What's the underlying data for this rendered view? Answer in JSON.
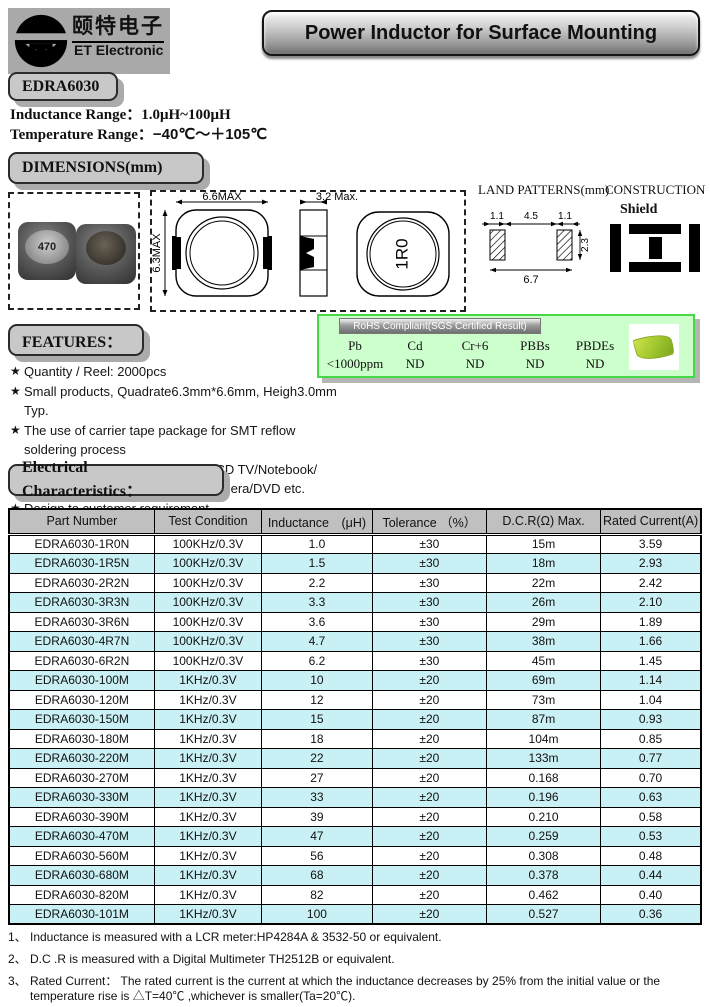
{
  "header": {
    "logo_chinese": "颐特电子",
    "logo_english": "ET Electronic",
    "title": "Power Inductor for Surface Mounting"
  },
  "part_number_badge": "EDRA6030",
  "specs": {
    "inductance_label": "Inductance Range：",
    "inductance_value": "1.0μH~100μH",
    "temperature_label": "Temperature Range：",
    "temperature_value": "−40℃～＋105℃"
  },
  "dimensions": {
    "section_title": "DIMENSIONS(mm)",
    "photo_marking": "470",
    "front_width": "6.6MAX",
    "front_height": "6.3MAX",
    "side_width": "3.2 Max.",
    "top_marking": "1R0"
  },
  "land_patterns": {
    "title": "LAND PATTERNS(mm)",
    "pad_left": "1.1",
    "gap": "4.5",
    "pad_right": "1.1",
    "pad_height": "2.3",
    "total_width": "6.7"
  },
  "construction": {
    "title": "CONSTRUCTION",
    "type": "Shield"
  },
  "rohs": {
    "banner": "RoHS Compliant(SGS Certified Result)",
    "columns": [
      "Pb",
      "Cd",
      "Cr+6",
      "PBBs",
      "PBDEs"
    ],
    "values": [
      "<1000ppm",
      "ND",
      "ND",
      "ND",
      "ND"
    ],
    "leaf_icon": "green-leaf"
  },
  "features": {
    "section_title": "FEATURES：",
    "items": [
      {
        "star": true,
        "text": "Quantity / Reel: 2000pcs"
      },
      {
        "star": true,
        "text": "Small products, Quadrate6.3mm*6.6mm, Heigh3.0mm Typ."
      },
      {
        "star": true,
        "text": "The use of carrier tape package for SMT reflow soldering process"
      },
      {
        "star": true,
        "text": "Widely use in DC-DC converter/LCD TV/Notebook/"
      },
      {
        "star": false,
        "text": "PDA/MP3 & MP4 player/Digital camera/DVD etc."
      },
      {
        "star": true,
        "text": "Design to customer requirement"
      }
    ]
  },
  "electrical": {
    "section_title": "Electrical Characteristics：",
    "headers": [
      "Part Number",
      "Test Condition",
      "Inductance　(μH)",
      "Tolerance （%）",
      "D.C.R(Ω) Max.",
      "Rated Current(A)"
    ],
    "rows": [
      [
        "EDRA6030-1R0N",
        "100KHz/0.3V",
        "1.0",
        "±30",
        "15m",
        "3.59"
      ],
      [
        "EDRA6030-1R5N",
        "100KHz/0.3V",
        "1.5",
        "±30",
        "18m",
        "2.93"
      ],
      [
        "EDRA6030-2R2N",
        "100KHz/0.3V",
        "2.2",
        "±30",
        "22m",
        "2.42"
      ],
      [
        "EDRA6030-3R3N",
        "100KHz/0.3V",
        "3.3",
        "±30",
        "26m",
        "2.10"
      ],
      [
        "EDRA6030-3R6N",
        "100KHz/0.3V",
        "3.6",
        "±30",
        "29m",
        "1.89"
      ],
      [
        "EDRA6030-4R7N",
        "100KHz/0.3V",
        "4.7",
        "±30",
        "38m",
        "1.66"
      ],
      [
        "EDRA6030-6R2N",
        "100KHz/0.3V",
        "6.2",
        "±30",
        "45m",
        "1.45"
      ],
      [
        "EDRA6030-100M",
        "1KHz/0.3V",
        "10",
        "±20",
        "69m",
        "1.14"
      ],
      [
        "EDRA6030-120M",
        "1KHz/0.3V",
        "12",
        "±20",
        "73m",
        "1.04"
      ],
      [
        "EDRA6030-150M",
        "1KHz/0.3V",
        "15",
        "±20",
        "87m",
        "0.93"
      ],
      [
        "EDRA6030-180M",
        "1KHz/0.3V",
        "18",
        "±20",
        "104m",
        "0.85"
      ],
      [
        "EDRA6030-220M",
        "1KHz/0.3V",
        "22",
        "±20",
        "133m",
        "0.77"
      ],
      [
        "EDRA6030-270M",
        "1KHz/0.3V",
        "27",
        "±20",
        "0.168",
        "0.70"
      ],
      [
        "EDRA6030-330M",
        "1KHz/0.3V",
        "33",
        "±20",
        "0.196",
        "0.63"
      ],
      [
        "EDRA6030-390M",
        "1KHz/0.3V",
        "39",
        "±20",
        "0.210",
        "0.58"
      ],
      [
        "EDRA6030-470M",
        "1KHz/0.3V",
        "47",
        "±20",
        "0.259",
        "0.53"
      ],
      [
        "EDRA6030-560M",
        "1KHz/0.3V",
        "56",
        "±20",
        "0.308",
        "0.48"
      ],
      [
        "EDRA6030-680M",
        "1KHz/0.3V",
        "68",
        "±20",
        "0.378",
        "0.44"
      ],
      [
        "EDRA6030-820M",
        "1KHz/0.3V",
        "82",
        "±20",
        "0.462",
        "0.40"
      ],
      [
        "EDRA6030-101M",
        "1KHz/0.3V",
        "100",
        "±20",
        "0.527",
        "0.36"
      ]
    ]
  },
  "notes": [
    {
      "num": "1、",
      "text": "Inductance is measured with a LCR meter:HP4284A & 3532-50 or equivalent."
    },
    {
      "num": "2、",
      "text": "D.C .R is measured with a Digital Multimeter TH2512B or equivalent."
    },
    {
      "num": "3、",
      "text": "Rated Current： The rated current is the current at which the inductance decreases by 25% from the initial value or the temperature rise is △T=40℃ ,whichever is smaller(Ta=20℃)."
    }
  ],
  "colors": {
    "row_alt": "#c9f0f4",
    "table_header": "#c0c0c0",
    "badge_gray": "#c8c8c8",
    "rohs_background": "#ccffcc",
    "rohs_border": "#46d846",
    "logo_background": "#a9a9a9"
  }
}
